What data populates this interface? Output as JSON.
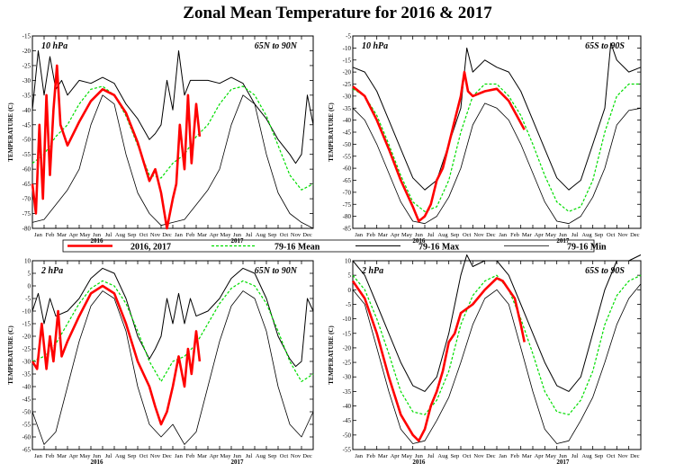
{
  "title": "Zonal Mean Temperature for 2016 & 2017",
  "colors": {
    "obs": "#ff0000",
    "mean": "#00dd00",
    "max": "#000000",
    "min": "#000000"
  },
  "legend": {
    "entries": [
      {
        "label": "2016, 2017",
        "style": "obs"
      },
      {
        "label": "79-16 Mean",
        "style": "mean"
      },
      {
        "label": "79-16 Max",
        "style": "max"
      },
      {
        "label": "79-16 Min",
        "style": "min"
      }
    ]
  },
  "x_axis": {
    "months": [
      "Jan",
      "Feb",
      "Mar",
      "Apr",
      "May",
      "Jun",
      "Jul",
      "Aug",
      "Sep",
      "Oct",
      "Nov",
      "Dec",
      "Jan",
      "Feb",
      "Mar",
      "Apr",
      "May",
      "Jun",
      "Jul",
      "Aug",
      "Sep",
      "Oct",
      "Nov",
      "Dec"
    ],
    "years": [
      "2016",
      "2017"
    ]
  },
  "chart_data": [
    {
      "type": "line",
      "level_label": "10 hPa",
      "region_label": "65N to 90N",
      "ylabel": "TEMPERATURE (C)",
      "ylim": [
        -80,
        -15
      ],
      "yticks": [
        -80,
        -75,
        -70,
        -65,
        -60,
        -55,
        -50,
        -45,
        -40,
        -35,
        -30,
        -25,
        -20,
        -15
      ],
      "series": [
        {
          "name": "79-16 Max",
          "style": "max",
          "x": [
            0,
            0.5,
            1,
            1.5,
            2,
            2.5,
            3,
            4,
            5,
            6,
            7,
            8,
            9,
            10,
            10.5,
            11,
            11.5,
            12,
            12.5,
            13,
            13.5,
            14,
            15,
            16,
            17,
            18,
            19,
            20,
            21,
            22,
            22.5,
            23,
            23.5,
            24
          ],
          "y": [
            -40,
            -20,
            -35,
            -22,
            -33,
            -30,
            -35,
            -30,
            -31,
            -29,
            -31,
            -38,
            -43,
            -50,
            -48,
            -45,
            -30,
            -40,
            -20,
            -35,
            -30,
            -30,
            -30,
            -31,
            -29,
            -31,
            -38,
            -43,
            -50,
            -55,
            -58,
            -55,
            -35,
            -45
          ]
        },
        {
          "name": "79-16 Mean",
          "style": "mean",
          "x": [
            0,
            1,
            2,
            3,
            4,
            5,
            6,
            7,
            8,
            9,
            10,
            11,
            12,
            13,
            14,
            15,
            16,
            17,
            18,
            19,
            20,
            21,
            22,
            23,
            24
          ],
          "y": [
            -58,
            -55,
            -49,
            -45,
            -38,
            -33,
            -32,
            -35,
            -42,
            -52,
            -62,
            -63,
            -58,
            -55,
            -49,
            -45,
            -38,
            -33,
            -32,
            -35,
            -42,
            -52,
            -62,
            -67,
            -65
          ]
        },
        {
          "name": "79-16 Min",
          "style": "min",
          "x": [
            0,
            1,
            2,
            3,
            4,
            5,
            6,
            7,
            8,
            9,
            10,
            11,
            12,
            13,
            14,
            15,
            16,
            17,
            18,
            19,
            20,
            21,
            22,
            23,
            24
          ],
          "y": [
            -78,
            -77,
            -72,
            -67,
            -60,
            -45,
            -35,
            -38,
            -55,
            -68,
            -75,
            -79,
            -78,
            -77,
            -72,
            -67,
            -60,
            -45,
            -35,
            -38,
            -55,
            -68,
            -75,
            -78,
            -80
          ]
        },
        {
          "name": "2016, 2017",
          "style": "obs",
          "x": [
            0,
            0.3,
            0.6,
            0.9,
            1.2,
            1.5,
            1.8,
            2.1,
            2.4,
            3,
            4,
            5,
            6,
            7,
            8,
            9,
            10,
            10.5,
            11,
            11.5,
            12,
            12.3,
            12.6,
            13,
            13.3,
            13.6,
            14,
            14.3
          ],
          "y": [
            -65,
            -75,
            -45,
            -70,
            -35,
            -62,
            -40,
            -25,
            -45,
            -52,
            -44,
            -37,
            -33,
            -35,
            -41,
            -51,
            -64,
            -60,
            -68,
            -80,
            -70,
            -65,
            -45,
            -60,
            -35,
            -58,
            -38,
            -49
          ]
        }
      ]
    },
    {
      "type": "line",
      "level_label": "10 hPa",
      "region_label": "65S to 90S",
      "ylabel": "TEMPERATURE (C)",
      "ylim": [
        -85,
        -5
      ],
      "yticks": [
        -85,
        -80,
        -75,
        -70,
        -65,
        -60,
        -55,
        -50,
        -45,
        -40,
        -35,
        -30,
        -25,
        -20,
        -15,
        -10,
        -5
      ],
      "series": [
        {
          "name": "79-16 Max",
          "style": "max",
          "x": [
            0,
            1,
            2,
            3,
            4,
            5,
            6,
            7,
            8,
            9,
            9.5,
            10,
            11,
            12,
            13,
            14,
            15,
            16,
            17,
            18,
            19,
            20,
            21,
            21.5,
            22,
            23,
            24
          ],
          "y": [
            -18,
            -20,
            -28,
            -40,
            -52,
            -64,
            -69,
            -65,
            -50,
            -35,
            -10,
            -20,
            -15,
            -18,
            -20,
            -28,
            -40,
            -52,
            -64,
            -69,
            -65,
            -50,
            -35,
            -8,
            -15,
            -20,
            -18
          ]
        },
        {
          "name": "79-16 Mean",
          "style": "mean",
          "x": [
            0,
            1,
            2,
            3,
            4,
            5,
            6,
            7,
            8,
            9,
            10,
            11,
            12,
            13,
            14,
            15,
            16,
            17,
            18,
            19,
            20,
            21,
            22,
            23,
            24
          ],
          "y": [
            -27,
            -30,
            -38,
            -50,
            -63,
            -74,
            -78,
            -76,
            -65,
            -45,
            -30,
            -25,
            -25,
            -30,
            -38,
            -50,
            -63,
            -74,
            -78,
            -76,
            -65,
            -45,
            -30,
            -25,
            -25
          ]
        },
        {
          "name": "79-16 Min",
          "style": "min",
          "x": [
            0,
            1,
            2,
            3,
            4,
            5,
            6,
            7,
            8,
            9,
            10,
            11,
            12,
            13,
            14,
            15,
            16,
            17,
            18,
            19,
            20,
            21,
            22,
            23,
            24
          ],
          "y": [
            -35,
            -40,
            -50,
            -62,
            -74,
            -82,
            -83,
            -80,
            -72,
            -60,
            -42,
            -33,
            -35,
            -40,
            -50,
            -62,
            -74,
            -82,
            -83,
            -80,
            -72,
            -60,
            -42,
            -36,
            -35
          ]
        },
        {
          "name": "2016, 2017",
          "style": "obs",
          "x": [
            0,
            1,
            2,
            3,
            4,
            5,
            5.5,
            6,
            6.5,
            7,
            7.5,
            8,
            8.5,
            9,
            9.3,
            9.6,
            10,
            11,
            12,
            13,
            14.3
          ],
          "y": [
            -26,
            -30,
            -40,
            -52,
            -65,
            -76,
            -82,
            -80,
            -75,
            -65,
            -60,
            -50,
            -40,
            -30,
            -20,
            -28,
            -30,
            -28,
            -27,
            -32,
            -44
          ]
        }
      ]
    },
    {
      "type": "line",
      "level_label": "2 hPa",
      "region_label": "65N to 90N",
      "ylabel": "TEMPERATURE (C)",
      "ylim": [
        -65,
        10
      ],
      "yticks": [
        -65,
        -60,
        -55,
        -50,
        -45,
        -40,
        -35,
        -30,
        -25,
        -20,
        -15,
        -10,
        -5,
        0,
        5,
        10
      ],
      "series": [
        {
          "name": "79-16 Max",
          "style": "max",
          "x": [
            0,
            0.5,
            1,
            1.5,
            2,
            3,
            4,
            5,
            6,
            7,
            8,
            9,
            10,
            10.5,
            11,
            11.5,
            12,
            12.5,
            13,
            13.5,
            14,
            15,
            16,
            17,
            18,
            19,
            20,
            21,
            22,
            22.5,
            23,
            23.5,
            24
          ],
          "y": [
            -10,
            -3,
            -15,
            -5,
            -12,
            -10,
            -5,
            3,
            7,
            5,
            -5,
            -20,
            -29,
            -25,
            -20,
            -5,
            -15,
            -3,
            -15,
            -5,
            -12,
            -10,
            -5,
            3,
            7,
            5,
            -5,
            -20,
            -29,
            -32,
            -30,
            -5,
            -10
          ]
        },
        {
          "name": "79-16 Mean",
          "style": "mean",
          "x": [
            0,
            1,
            2,
            3,
            4,
            5,
            6,
            7,
            8,
            9,
            10,
            11,
            12,
            13,
            14,
            15,
            16,
            17,
            18,
            19,
            20,
            21,
            22,
            23,
            24
          ],
          "y": [
            -30,
            -28,
            -23,
            -15,
            -7,
            -1,
            2,
            0,
            -7,
            -18,
            -30,
            -38,
            -30,
            -28,
            -23,
            -15,
            -7,
            -1,
            2,
            0,
            -7,
            -18,
            -30,
            -38,
            -35
          ]
        },
        {
          "name": "79-16 Min",
          "style": "min",
          "x": [
            0,
            1,
            2,
            3,
            4,
            5,
            6,
            7,
            8,
            9,
            10,
            11,
            12,
            13,
            14,
            15,
            16,
            17,
            18,
            19,
            20,
            21,
            22,
            23,
            24
          ],
          "y": [
            -50,
            -63,
            -58,
            -40,
            -22,
            -8,
            -2,
            -5,
            -18,
            -40,
            -55,
            -60,
            -55,
            -63,
            -58,
            -40,
            -22,
            -8,
            -2,
            -5,
            -18,
            -40,
            -55,
            -60,
            -50
          ]
        },
        {
          "name": "2016, 2017",
          "style": "obs",
          "x": [
            0,
            0.4,
            0.8,
            1.2,
            1.5,
            1.8,
            2.2,
            2.5,
            3,
            4,
            5,
            6,
            7,
            8,
            9,
            10,
            10.5,
            11,
            11.5,
            12,
            12.5,
            13,
            13.3,
            13.6,
            14,
            14.3
          ],
          "y": [
            -30,
            -33,
            -15,
            -33,
            -20,
            -30,
            -10,
            -28,
            -22,
            -12,
            -3,
            0,
            -3,
            -15,
            -30,
            -40,
            -48,
            -55,
            -50,
            -40,
            -28,
            -40,
            -25,
            -35,
            -18,
            -30
          ]
        }
      ]
    },
    {
      "type": "line",
      "level_label": "2 hPa",
      "region_label": "65S to 90S",
      "ylabel": "TEMPERATURE (C)",
      "ylim": [
        -55,
        10
      ],
      "yticks": [
        -55,
        -50,
        -45,
        -40,
        -35,
        -30,
        -25,
        -20,
        -15,
        -10,
        -5,
        0,
        5,
        10
      ],
      "series": [
        {
          "name": "79-16 Max",
          "style": "max",
          "x": [
            0,
            1,
            2,
            3,
            4,
            5,
            6,
            7,
            8,
            9,
            9.5,
            10,
            11,
            12,
            13,
            14,
            15,
            16,
            17,
            18,
            19,
            20,
            21,
            22,
            23,
            24
          ],
          "y": [
            10,
            5,
            -5,
            -15,
            -25,
            -33,
            -35,
            -30,
            -15,
            5,
            12,
            8,
            10,
            10,
            5,
            -5,
            -15,
            -25,
            -33,
            -35,
            -30,
            -15,
            0,
            10,
            10,
            12
          ]
        },
        {
          "name": "79-16 Mean",
          "style": "mean",
          "x": [
            0,
            1,
            2,
            3,
            4,
            5,
            6,
            7,
            8,
            9,
            10,
            11,
            12,
            13,
            14,
            15,
            16,
            17,
            18,
            19,
            20,
            21,
            22,
            23,
            24
          ],
          "y": [
            5,
            0,
            -10,
            -22,
            -35,
            -42,
            -43,
            -38,
            -28,
            -12,
            -2,
            3,
            5,
            0,
            -10,
            -22,
            -35,
            -42,
            -43,
            -38,
            -28,
            -12,
            -2,
            3,
            5
          ]
        },
        {
          "name": "79-16 Min",
          "style": "min",
          "x": [
            0,
            1,
            2,
            3,
            4,
            5,
            6,
            7,
            8,
            9,
            10,
            11,
            12,
            13,
            14,
            15,
            16,
            17,
            18,
            19,
            20,
            21,
            22,
            23,
            24
          ],
          "y": [
            0,
            -5,
            -20,
            -35,
            -48,
            -53,
            -52,
            -45,
            -37,
            -25,
            -12,
            -3,
            0,
            -5,
            -20,
            -35,
            -48,
            -53,
            -52,
            -45,
            -37,
            -25,
            -12,
            -3,
            2
          ]
        },
        {
          "name": "2016, 2017",
          "style": "obs",
          "x": [
            0,
            1,
            2,
            3,
            4,
            5,
            5.5,
            6,
            6.5,
            7,
            7.5,
            8,
            8.5,
            9,
            10,
            11,
            12,
            12.5,
            13,
            13.5,
            14,
            14.3
          ],
          "y": [
            3,
            -3,
            -15,
            -30,
            -43,
            -50,
            -52,
            -48,
            -40,
            -35,
            -28,
            -18,
            -15,
            -8,
            -5,
            0,
            4,
            3,
            0,
            -3,
            -12,
            -18
          ]
        }
      ]
    }
  ]
}
